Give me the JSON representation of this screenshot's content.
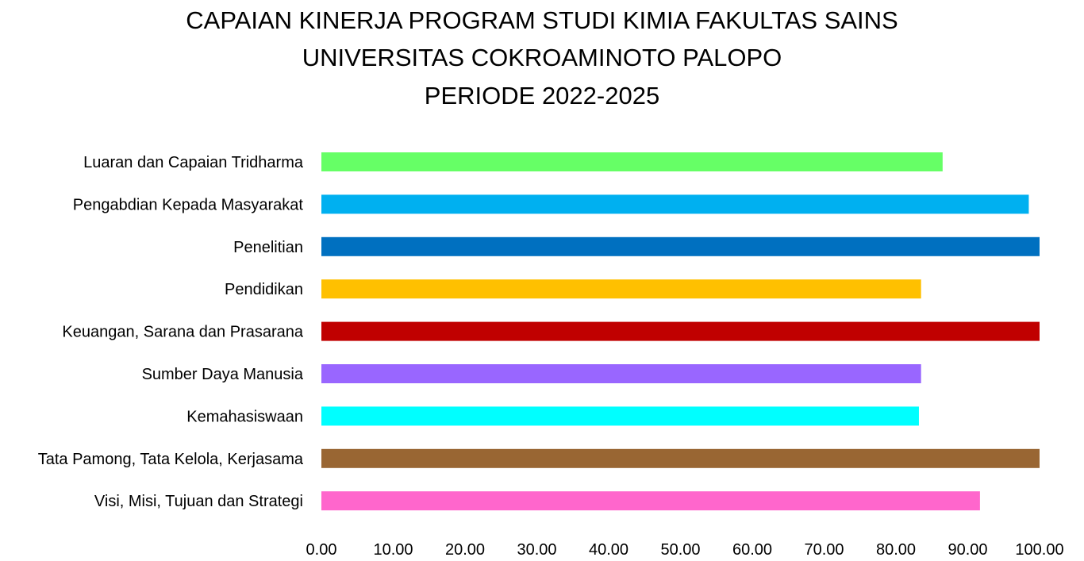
{
  "chart_data": {
    "type": "bar",
    "orientation": "horizontal",
    "title": [
      "CAPAIAN KINERJA PROGRAM STUDI KIMIA FAKULTAS SAINS",
      "UNIVERSITAS COKROAMINOTO PALOPO",
      "PERIODE 2022-2025"
    ],
    "categories": [
      "Luaran dan Capaian Tridharma",
      "Pengabdian Kepada Masyarakat",
      "Penelitian",
      "Pendidikan",
      "Keuangan, Sarana dan Prasarana",
      "Sumber Daya Manusia",
      "Kemahasiswaan",
      "Tata Pamong, Tata Kelola, Kerjasama",
      "Visi, Misi, Tujuan dan Strategi"
    ],
    "values": [
      86.5,
      98.5,
      100,
      83.5,
      100,
      83.5,
      83.2,
      100,
      91.7
    ],
    "colors": [
      "#66ff66",
      "#00b0f0",
      "#0070c0",
      "#ffc000",
      "#c00000",
      "#9966ff",
      "#00ffff",
      "#996633",
      "#ff66cc"
    ],
    "xlim": [
      0,
      100
    ],
    "xticks": [
      "0.00",
      "10.00",
      "20.00",
      "30.00",
      "40.00",
      "50.00",
      "60.00",
      "70.00",
      "80.00",
      "90.00",
      "100.00"
    ],
    "grid": false,
    "legend": "none"
  }
}
